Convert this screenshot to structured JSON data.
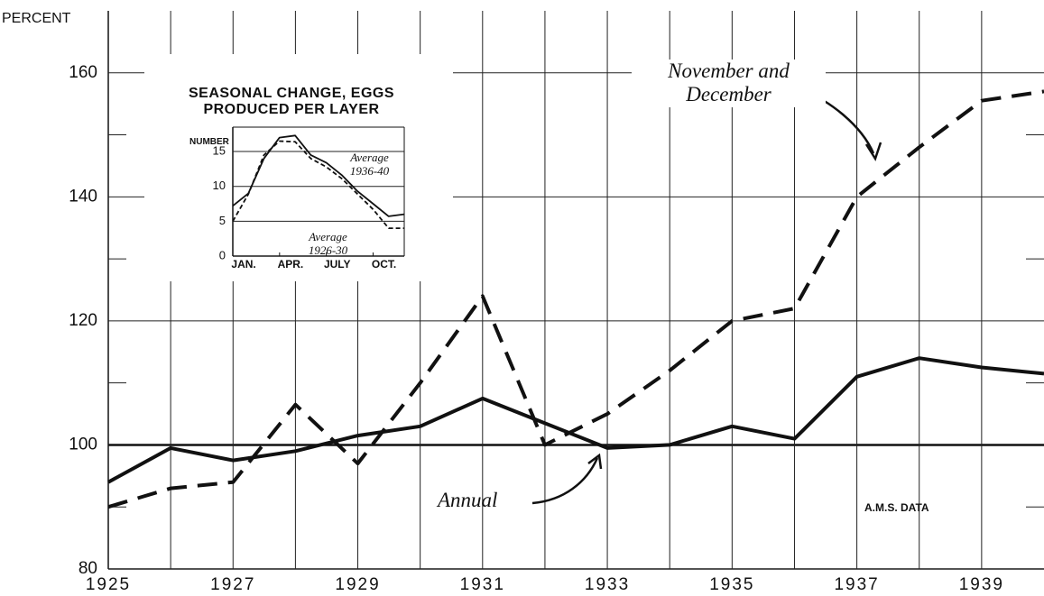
{
  "chart_data": [
    {
      "type": "line",
      "ylabel": "PERCENT",
      "x": [
        1925,
        1926,
        1927,
        1928,
        1929,
        1930,
        1931,
        1932,
        1933,
        1934,
        1935,
        1936,
        1937,
        1938,
        1939,
        1940
      ],
      "series": [
        {
          "name": "Annual",
          "color": "#111111",
          "dashed": false,
          "values": [
            94,
            99.5,
            97.5,
            99,
            101.5,
            103,
            107.5,
            103.5,
            99.5,
            100,
            103,
            101,
            111,
            114,
            112.5,
            111.5
          ]
        },
        {
          "name": "November and December",
          "color": "#111111",
          "dashed": true,
          "values": [
            90,
            93,
            94,
            106.5,
            97,
            110,
            124,
            100,
            105,
            112,
            120,
            122,
            140,
            148,
            155.5,
            157
          ]
        }
      ],
      "xlim": [
        1925,
        1940
      ],
      "xticks": [
        1925,
        1927,
        1929,
        1931,
        1933,
        1935,
        1937,
        1939
      ],
      "xgrid": [
        1926,
        1927,
        1928,
        1929,
        1930,
        1931,
        1932,
        1933,
        1934,
        1935,
        1936,
        1937,
        1938,
        1939
      ],
      "ylim": [
        80,
        170
      ],
      "yticks": [
        80,
        100,
        120,
        140,
        160
      ],
      "yminor": [
        90,
        110,
        130,
        150
      ],
      "baseline": 100,
      "grid": true,
      "annotation": "A.M.S. DATA"
    },
    {
      "type": "line",
      "title": "SEASONAL CHANGE, EGGS PRODUCED PER LAYER",
      "ylabel": "NUMBER",
      "categories": [
        "JAN.",
        null,
        null,
        "APR.",
        null,
        null,
        "JULY",
        null,
        null,
        "OCT.",
        null,
        null
      ],
      "series": [
        {
          "name": "Average 1936-40",
          "color": "#111111",
          "dashed": false,
          "values": [
            7.2,
            9,
            14,
            17,
            17.3,
            14.5,
            13.4,
            11.6,
            9.3,
            7.5,
            5.7,
            6
          ]
        },
        {
          "name": "Average 1926-30",
          "color": "#111111",
          "dashed": true,
          "values": [
            5,
            8.9,
            14.5,
            16.5,
            16.4,
            14,
            12.8,
            11.1,
            8.9,
            6.7,
            4,
            4
          ]
        }
      ],
      "ylim": [
        0,
        18.5
      ],
      "yticks": [
        0,
        5,
        10,
        15
      ],
      "grid": true
    }
  ]
}
